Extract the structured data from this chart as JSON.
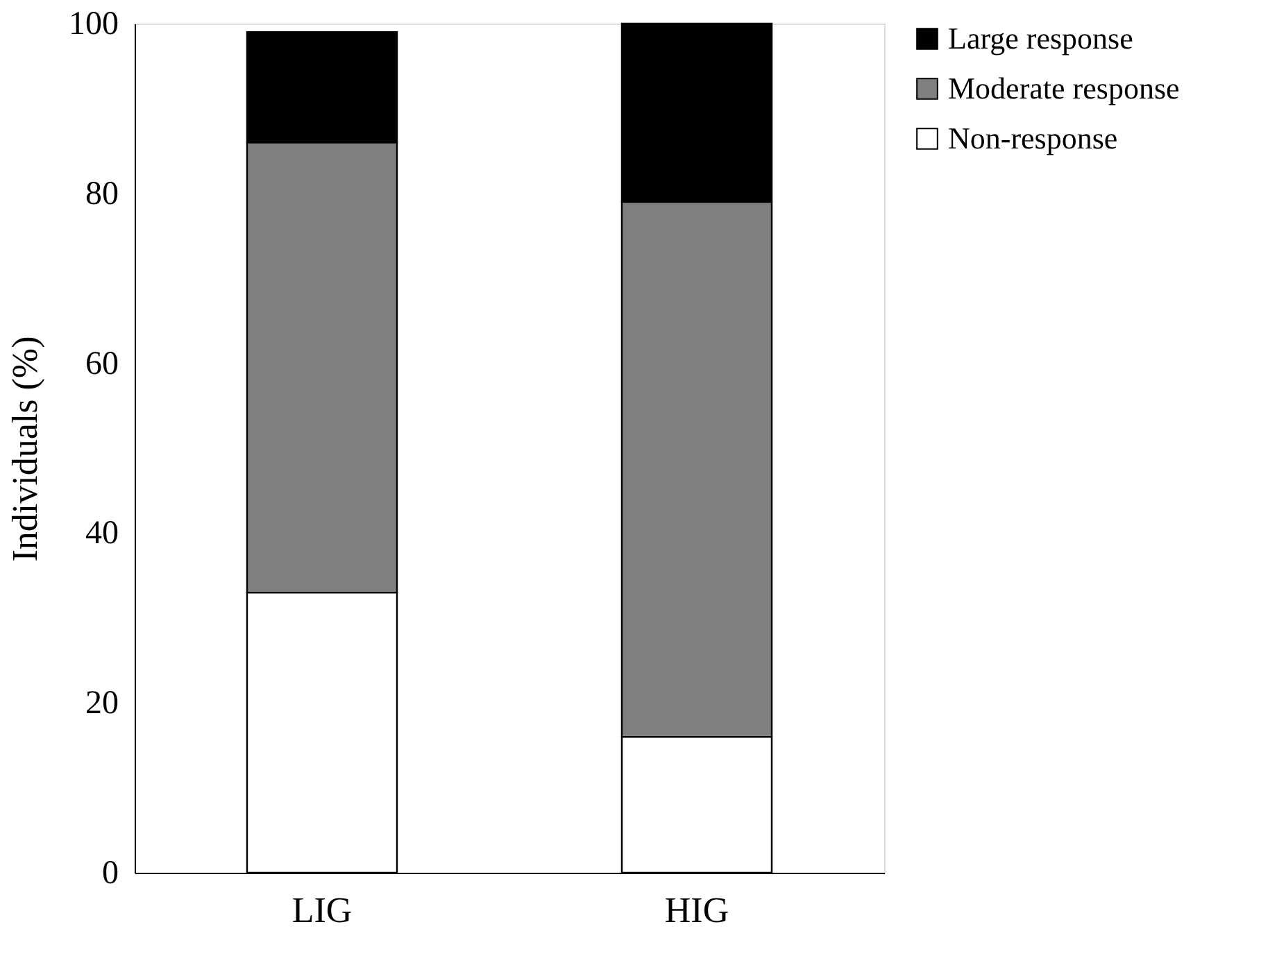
{
  "chart_data": {
    "type": "bar",
    "stacked": true,
    "ylabel": "Individuals (%)",
    "categories": [
      "LIG",
      "HIG"
    ],
    "series": [
      {
        "name": "Non-response",
        "color": "#ffffff",
        "values": [
          33,
          16
        ]
      },
      {
        "name": "Moderate response",
        "color": "#808080",
        "values": [
          53,
          63
        ]
      },
      {
        "name": "Large response",
        "color": "#000000",
        "values": [
          13,
          21
        ]
      }
    ],
    "ylim": [
      0,
      100
    ],
    "yticks": [
      0,
      20,
      40,
      60,
      80,
      100
    ],
    "grid": false,
    "legend": "right"
  }
}
